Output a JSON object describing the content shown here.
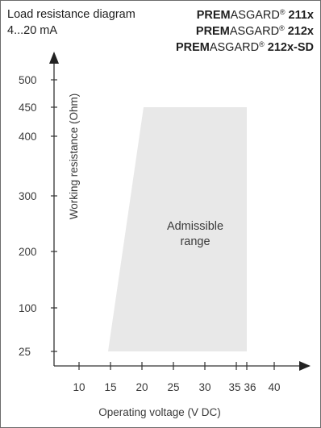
{
  "header": {
    "title_line1": "Load resistance diagram",
    "title_line2": "4...20 mA",
    "products": [
      {
        "prefix": "PREM",
        "mid": "ASGARD",
        "reg": "®",
        "model": "211x"
      },
      {
        "prefix": "PREM",
        "mid": "ASGARD",
        "reg": "®",
        "model": "212x"
      },
      {
        "prefix": "PREM",
        "mid": "ASGARD",
        "reg": "®",
        "model": "212x-SD"
      }
    ]
  },
  "chart_data": {
    "type": "area",
    "xlabel": "Operating voltage  (V DC)",
    "ylabel": "Working resistance  (Ohm)",
    "x_ticks": [
      10,
      15,
      20,
      25,
      30,
      35,
      36,
      40
    ],
    "y_ticks": [
      25,
      100,
      200,
      300,
      400,
      450,
      500
    ],
    "region": {
      "label_line1": "Admissible",
      "label_line2": "range",
      "points": [
        {
          "x": 15,
          "y": 25
        },
        {
          "x": 21,
          "y": 450
        },
        {
          "x": 36,
          "y": 450
        },
        {
          "x": 36,
          "y": 25
        }
      ],
      "color": "#e8e8e8"
    },
    "grid": false
  }
}
